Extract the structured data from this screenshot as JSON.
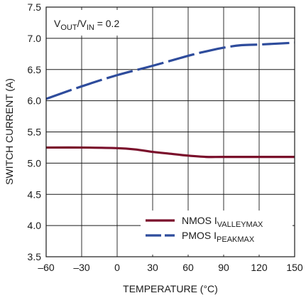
{
  "chart_data": {
    "type": "line",
    "annotation": {
      "v1": "V",
      "v1_sub": "OUT",
      "slash": "/",
      "v2": "V",
      "v2_sub": "IN",
      "rest": " = 0.2"
    },
    "xlabel": "TEMPERATURE (°C)",
    "ylabel": "SWITCH CURRENT (A)",
    "xlim": [
      -60,
      150
    ],
    "ylim": [
      3.5,
      7.5
    ],
    "x_ticks": [
      -60,
      -30,
      0,
      30,
      60,
      90,
      120,
      150
    ],
    "x_tick_labels": [
      "–60",
      "–30",
      "0",
      "30",
      "60",
      "90",
      "120",
      "150"
    ],
    "y_ticks": [
      3.5,
      4.0,
      4.5,
      5.0,
      5.5,
      6.0,
      6.5,
      7.0,
      7.5
    ],
    "y_tick_labels": [
      "3.5",
      "4.0",
      "4.5",
      "5.0",
      "5.5",
      "6.0",
      "6.5",
      "7.0",
      "7.5"
    ],
    "grid": true,
    "legend_position": "bottom-right",
    "series": [
      {
        "key": "nmos",
        "name_main": "NMOS I",
        "name_sub": "VALLEYMAX",
        "color": "#7a0f2b",
        "style": "solid",
        "x": [
          -60,
          -30,
          0,
          15,
          30,
          45,
          60,
          75,
          90,
          120,
          150
        ],
        "y": [
          5.25,
          5.25,
          5.24,
          5.22,
          5.18,
          5.15,
          5.12,
          5.1,
          5.1,
          5.1,
          5.1
        ]
      },
      {
        "key": "pmos",
        "name_main": "PMOS I",
        "name_sub": "PEAKMAX",
        "color": "#2e4c9c",
        "style": "dashed",
        "x": [
          -60,
          -30,
          0,
          30,
          60,
          75,
          90,
          105,
          120,
          150
        ],
        "y": [
          6.03,
          6.23,
          6.41,
          6.56,
          6.72,
          6.79,
          6.85,
          6.89,
          6.9,
          6.93
        ]
      }
    ]
  }
}
